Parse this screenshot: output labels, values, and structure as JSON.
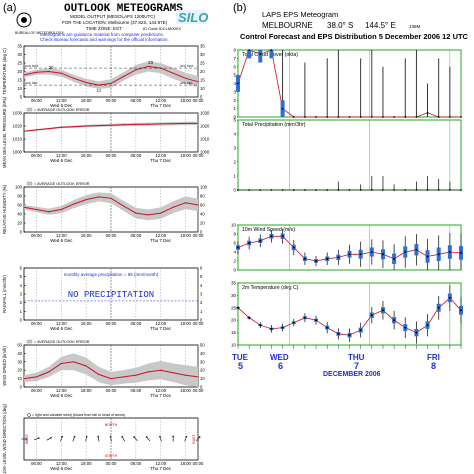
{
  "colors": {
    "blue_text": "#1f2fd0",
    "red_line": "#cc1122",
    "band_grey": "#c8c8c8",
    "green_frame": "#22aa22",
    "eps_blue": "#2d6fd6",
    "black": "#000000",
    "silo_teal": "#3aa4b8"
  },
  "panel_a": {
    "letter": "(a)",
    "heading": "OUTLOOK METEOGRAMS",
    "subheading": "MODEL OUTPUT (MESOLAPS 1200UTC)",
    "location": "FOR THE LOCATION: Melbourne (37.82S, 144.97E)",
    "timezone": "TIME ZONE: EST",
    "id_code": "ID Code IDCLM00XX",
    "bureau": "BUREAU OF METEOROLOGY",
    "silo": "SILO",
    "note1": "Meteograms are guidance material from computer predictions.",
    "note2": "Check Bureau forecasts and warnings for the official information.",
    "legend_avg_error": "= AVERAGE OUTLOOK ERROR",
    "legend_avg_error2": "= AVERAGE OUTLOOK ERROR",
    "legend_avg_error3": "= AVERAGE OUTLOOK ERROR",
    "legend_avg_error4": "= AVERAGE OUTLOOK ERROR",
    "legend_wind": "= light and variable wind)   (blows from tail to head of arrow)",
    "no_precip": "NO  PRECIPITATION",
    "monthly_avg": "monthly average precipitation = 65 (mm/month)",
    "north": "NORTH",
    "south": "SOUTH",
    "east": "EAST",
    "west": "WEST",
    "times": [
      "06:00",
      "12:00",
      "18:00",
      "00:00",
      "06:00",
      "12:00",
      "18:00",
      "00:00"
    ],
    "day1": "Wed 6 Dec",
    "day2": "Thu 7 Dec",
    "temp_labels": [
      "20",
      "12",
      "23"
    ],
    "temp_side": [
      "AVG MAX",
      "AVG MIN",
      "AVG MAX",
      "AVG MIN"
    ],
    "temp_ylabel": "TEMPERATURE (deg C)",
    "mslp_ylabel": "MEAN SEA LEVEL PRESSURE (hPa)",
    "rh_ylabel": "RELATIVE HUMIDITY (%)",
    "rain_ylabel": "RAINFALL (mm/3hr)",
    "wind_ylabel": "WIND SPEED (km/h)",
    "dir_ylabel": "10m LEVEL WIND DIRECTION (deg)"
  },
  "panel_b": {
    "letter": "(b)",
    "title1": "LAPS EPS Meteogram",
    "title2_a": "MELBOURNE",
    "title2_b": "38.0° S",
    "title2_c": "144.5° E",
    "title2_d": "135M",
    "title3": "Control Forecast and EPS Distribution 5 December 2006   12 UTC",
    "days": [
      "TUE",
      "WED",
      "THU",
      "FRI"
    ],
    "day_nums": [
      "5",
      "6",
      "7",
      "8"
    ],
    "month": "DECEMBER 2006"
  },
  "chart_data": [
    {
      "type": "line",
      "title": "Temperature",
      "ylabel": "TEMPERATURE (deg C)",
      "ylim": [
        5,
        35
      ],
      "yticks": [
        5,
        10,
        15,
        20,
        25,
        30,
        35
      ],
      "x": [
        0,
        3,
        6,
        9,
        12,
        15,
        18,
        21,
        24,
        27,
        30,
        33,
        36,
        39,
        42
      ],
      "series": [
        {
          "values": [
            18,
            19.5,
            20,
            19,
            16,
            13.5,
            12,
            13,
            17,
            21,
            23,
            22,
            19,
            16,
            14
          ]
        }
      ],
      "band_halfwidth": [
        1.5,
        1.5,
        1.8,
        2,
        2,
        2.2,
        2.3,
        2.5,
        2.5,
        2.8,
        3,
        3,
        3.2,
        3.2,
        3.3
      ]
    },
    {
      "type": "line",
      "title": "Mean sea level pressure",
      "ylabel": "MEAN SEA LEVEL PRESSURE (hPa)",
      "ylim": [
        1000,
        1030
      ],
      "yticks": [
        1000,
        1010,
        1020,
        1030
      ],
      "x": [
        0,
        3,
        6,
        9,
        12,
        15,
        18,
        21,
        24,
        27,
        30,
        33,
        36,
        39,
        42
      ],
      "series": [
        {
          "values": [
            1016,
            1017,
            1018,
            1019,
            1019.5,
            1020,
            1020.3,
            1020.6,
            1021,
            1021.2,
            1021.4,
            1021.6,
            1021.8,
            1022,
            1022
          ]
        }
      ],
      "band_halfwidth": [
        0.5,
        0.6,
        0.7,
        0.8,
        0.8,
        0.9,
        1,
        1,
        1.1,
        1.1,
        1.2,
        1.2,
        1.3,
        1.3,
        1.3
      ]
    },
    {
      "type": "line",
      "title": "Relative humidity",
      "ylabel": "RELATIVE HUMIDITY (%)",
      "ylim": [
        0,
        100
      ],
      "yticks": [
        0,
        20,
        40,
        60,
        80,
        100
      ],
      "x": [
        0,
        3,
        6,
        9,
        12,
        15,
        18,
        21,
        24,
        27,
        30,
        33,
        36,
        39,
        42
      ],
      "series": [
        {
          "values": [
            55,
            50,
            45,
            50,
            62,
            72,
            78,
            75,
            58,
            42,
            38,
            42,
            55,
            65,
            60
          ]
        }
      ],
      "band_halfwidth": [
        5,
        6,
        7,
        8,
        9,
        10,
        10,
        11,
        11,
        12,
        12,
        13,
        13,
        14,
        14
      ]
    },
    {
      "type": "line",
      "title": "Rainfall",
      "ylabel": "RAINFALL (mm/3hr)",
      "ylim": [
        0,
        6
      ],
      "yticks": [
        0,
        1,
        2,
        3,
        4,
        5,
        6
      ],
      "x": [
        0,
        42
      ],
      "series": [
        {
          "values": [
            0,
            0
          ]
        }
      ]
    },
    {
      "type": "line",
      "title": "Wind speed",
      "ylabel": "WIND SPEED (km/h)",
      "ylim": [
        0,
        50
      ],
      "yticks": [
        0,
        10,
        20,
        30,
        40,
        50
      ],
      "x": [
        0,
        3,
        6,
        9,
        12,
        15,
        18,
        21,
        24,
        27,
        30,
        33,
        36,
        39,
        42
      ],
      "series": [
        {
          "values": [
            10,
            12,
            18,
            28,
            30,
            25,
            15,
            10,
            12,
            14,
            18,
            20,
            17,
            14,
            12
          ]
        }
      ],
      "band_halfwidth": [
        4,
        5,
        6,
        8,
        10,
        10,
        9,
        8,
        8,
        9,
        10,
        11,
        11,
        12,
        12
      ]
    },
    {
      "type": "scatter",
      "title": "Wind direction",
      "ylabel": "10m LEVEL WIND DIRECTION (deg)",
      "x": [
        0,
        3,
        6,
        9,
        12,
        15,
        18,
        21,
        24,
        27,
        30,
        33,
        36,
        39,
        42
      ],
      "direction_deg": [
        270,
        250,
        240,
        200,
        200,
        190,
        170,
        170,
        150,
        140,
        140,
        160,
        180,
        200,
        220
      ]
    },
    {
      "type": "bar",
      "title": "Total Cloud Cover (okta)",
      "ylim": [
        0,
        8
      ],
      "yticks": [
        0,
        1,
        2,
        3,
        4,
        5,
        6,
        7,
        8
      ],
      "x": [
        0,
        6,
        12,
        18,
        24,
        30,
        36,
        42,
        48,
        54,
        60,
        66,
        72,
        78,
        84,
        90,
        96,
        102,
        108,
        114,
        120
      ],
      "series": [
        {
          "name": "control",
          "values": [
            4,
            8,
            7.5,
            8,
            1,
            0,
            0,
            0,
            0,
            0,
            0,
            0,
            0,
            0,
            0,
            0,
            0,
            0.5,
            0,
            0,
            0
          ]
        }
      ],
      "spikes": [
        0,
        0,
        0,
        0,
        8,
        0,
        6.5,
        0,
        7,
        8,
        0,
        7,
        8,
        6,
        0,
        7,
        8,
        4,
        7,
        6,
        0
      ]
    },
    {
      "type": "line",
      "title": "Total Precipitation (mm/3hr)",
      "ylim": [
        0,
        5
      ],
      "yticks": [
        0,
        1,
        2,
        3,
        4,
        5
      ],
      "x": [
        0,
        6,
        12,
        18,
        24,
        30,
        36,
        42,
        48,
        54,
        60,
        66,
        72,
        78,
        84,
        90,
        96,
        102,
        108,
        114,
        120
      ],
      "series": [
        {
          "name": "control",
          "values": [
            0,
            0,
            0,
            0,
            0,
            0,
            0,
            0,
            0,
            0,
            0,
            0,
            0,
            0,
            0,
            0,
            0,
            0,
            0,
            0,
            0
          ]
        }
      ],
      "spikes": [
        0,
        0,
        0,
        0,
        0,
        0,
        0,
        0,
        0,
        0.3,
        0,
        0.2,
        0.5,
        0.5,
        0.2,
        0,
        0.3,
        0.5,
        0.4,
        0.3,
        0
      ]
    },
    {
      "type": "line",
      "title": "10m Wind Speed (m/s)",
      "ylim": [
        0,
        10
      ],
      "yticks": [
        0,
        2,
        4,
        6,
        8,
        10
      ],
      "x": [
        0,
        6,
        12,
        18,
        24,
        30,
        36,
        42,
        48,
        54,
        60,
        66,
        72,
        78,
        84,
        90,
        96,
        102,
        108,
        114,
        120
      ],
      "series": [
        {
          "name": "control",
          "values": [
            5,
            6,
            6.5,
            7.5,
            7.5,
            5,
            2.5,
            2,
            2.5,
            2.8,
            3.5,
            3.5,
            4,
            3.5,
            2.5,
            4,
            4.5,
            3,
            3.5,
            4,
            3.8
          ]
        }
      ],
      "spread": [
        1,
        1,
        1,
        1,
        1.2,
        1.2,
        1,
        0.8,
        1,
        1.2,
        1.5,
        2,
        2,
        2.2,
        2.3,
        2.5,
        2.5,
        2.8,
        3,
        3,
        3
      ]
    },
    {
      "type": "line",
      "title": "2m Temperature (deg C)",
      "ylim": [
        10,
        35
      ],
      "yticks": [
        10,
        15,
        20,
        25,
        30,
        35
      ],
      "x": [
        0,
        6,
        12,
        18,
        24,
        30,
        36,
        42,
        48,
        54,
        60,
        66,
        72,
        78,
        84,
        90,
        96,
        102,
        108,
        114,
        120
      ],
      "series": [
        {
          "name": "control",
          "values": [
            25,
            21,
            18,
            16.5,
            17,
            19,
            21,
            20,
            17,
            14.5,
            14,
            16,
            22,
            24,
            20,
            17,
            15,
            18,
            25,
            29,
            24
          ]
        }
      ],
      "spread": [
        0.5,
        0.5,
        0.8,
        1,
        1,
        1,
        1.2,
        1.2,
        1.5,
        1.5,
        1.8,
        2,
        2.2,
        2.5,
        2.5,
        2.8,
        3,
        3,
        3.2,
        3.5,
        3.5
      ]
    }
  ]
}
